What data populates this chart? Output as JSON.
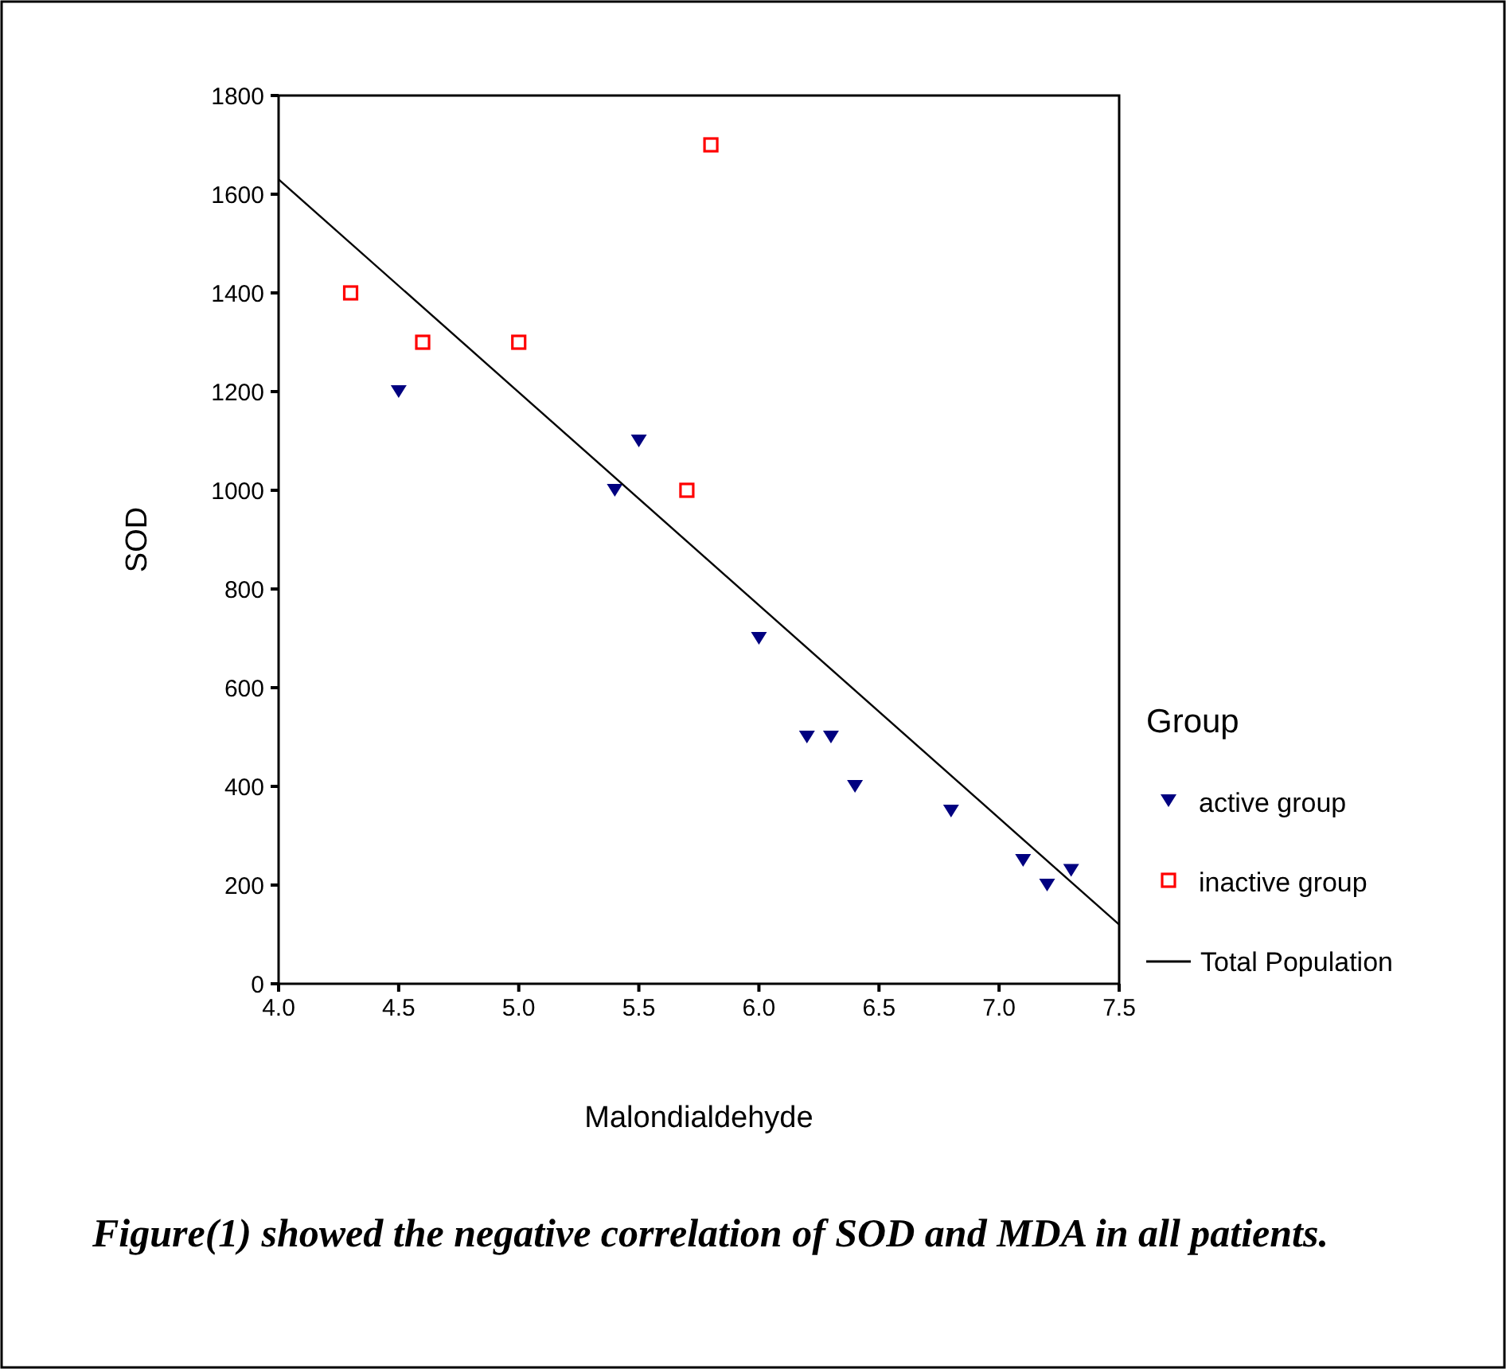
{
  "chart_data": {
    "type": "scatter",
    "xlabel": "Malondialdehyde",
    "ylabel": "SOD",
    "legend_title": "Group",
    "legend": "right",
    "grid": false,
    "xlim": [
      4,
      7.5
    ],
    "ylim": [
      0,
      1800
    ],
    "xticks": [
      {
        "value": 4,
        "label": "4.0"
      },
      {
        "value": 4.5,
        "label": "4.5"
      },
      {
        "value": 5,
        "label": "5.0"
      },
      {
        "value": 5.5,
        "label": "5.5"
      },
      {
        "value": 6,
        "label": "6.0"
      },
      {
        "value": 6.5,
        "label": "6.5"
      },
      {
        "value": 7,
        "label": "7.0"
      },
      {
        "value": 7.5,
        "label": "7.5"
      }
    ],
    "yticks": [
      0,
      200,
      400,
      600,
      800,
      1000,
      1200,
      1400,
      1600,
      1800
    ],
    "series": [
      {
        "name": "active group",
        "color": "#000080",
        "marker": "triangle",
        "x": [
          4.5,
          5.4,
          5.5,
          6.0,
          6.2,
          6.3,
          6.4,
          6.8,
          7.1,
          7.2,
          7.3
        ],
        "values": [
          1200,
          1000,
          1100,
          700,
          500,
          500,
          400,
          350,
          250,
          200,
          230
        ]
      },
      {
        "name": "inactive group",
        "color": "#ff0000",
        "marker": "square",
        "x": [
          4.3,
          4.6,
          5.0,
          5.7,
          5.8
        ],
        "values": [
          1400,
          1300,
          1300,
          1000,
          1700
        ]
      },
      {
        "name": "Total Population",
        "type": "line",
        "color": "#000000",
        "marker": "none",
        "line_style": "solid",
        "x": [
          4.0,
          7.5
        ],
        "values": [
          1630,
          120
        ]
      }
    ],
    "annotations": [
      "Figure(1) showed the negative correlation of SOD and MDA in all patients."
    ]
  }
}
